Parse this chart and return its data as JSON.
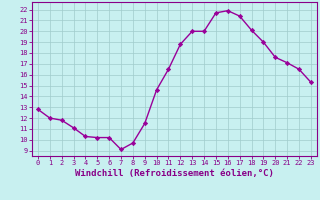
{
  "x": [
    0,
    1,
    2,
    3,
    4,
    5,
    6,
    7,
    8,
    9,
    10,
    11,
    12,
    13,
    14,
    15,
    16,
    17,
    18,
    19,
    20,
    21,
    22,
    23
  ],
  "y": [
    12.8,
    12.0,
    11.8,
    11.1,
    10.3,
    10.2,
    10.2,
    9.1,
    9.7,
    11.5,
    14.6,
    16.5,
    18.8,
    20.0,
    20.0,
    21.7,
    21.9,
    21.4,
    20.1,
    19.0,
    17.6,
    17.1,
    16.5,
    15.3
  ],
  "line_color": "#990099",
  "marker": "D",
  "marker_size": 2.2,
  "linewidth": 1.0,
  "xlabel": "Windchill (Refroidissement éolien,°C)",
  "xlabel_fontsize": 6.5,
  "xtick_labels": [
    "0",
    "1",
    "2",
    "3",
    "4",
    "5",
    "6",
    "7",
    "8",
    "9",
    "10",
    "11",
    "12",
    "13",
    "14",
    "15",
    "16",
    "17",
    "18",
    "19",
    "20",
    "21",
    "22",
    "23"
  ],
  "ytick_labels": [
    "9",
    "10",
    "11",
    "12",
    "13",
    "14",
    "15",
    "16",
    "17",
    "18",
    "19",
    "20",
    "21",
    "22"
  ],
  "yticks": [
    9,
    10,
    11,
    12,
    13,
    14,
    15,
    16,
    17,
    18,
    19,
    20,
    21,
    22
  ],
  "ylim": [
    8.5,
    22.7
  ],
  "xlim": [
    -0.5,
    23.5
  ],
  "background_color": "#c8f0f0",
  "grid_color": "#a0cccc",
  "tick_fontsize": 5.0,
  "tick_color": "#880088",
  "spine_color": "#880088",
  "xlabel_color": "#880088"
}
